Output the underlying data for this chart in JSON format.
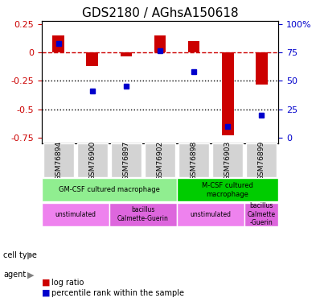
{
  "title": "GDS2180 / AGhsA150618",
  "samples": [
    "GSM76894",
    "GSM76900",
    "GSM76897",
    "GSM76902",
    "GSM76898",
    "GSM76903",
    "GSM76899"
  ],
  "log_ratio": [
    0.15,
    -0.12,
    -0.03,
    0.15,
    0.1,
    -0.73,
    -0.28
  ],
  "percentile_rank": [
    0.08,
    -0.34,
    -0.3,
    0.02,
    -0.17,
    -0.65,
    -0.55
  ],
  "ylim": [
    -0.8,
    0.28
  ],
  "yticks_left": [
    0.25,
    0,
    -0.25,
    -0.5,
    -0.75
  ],
  "yticks_right": [
    100,
    75,
    50,
    25,
    0
  ],
  "yticks_right_pos": [
    0.25,
    0,
    -0.25,
    -0.5,
    -0.75
  ],
  "hlines": [
    -0.25,
    -0.5
  ],
  "bar_color": "#cc0000",
  "dot_color": "#0000cc",
  "cell_type_row": [
    {
      "label": "GM-CSF cultured macrophage",
      "start": 0,
      "end": 4,
      "color": "#90ee90"
    },
    {
      "label": "M-CSF cultured\nmacrophage",
      "start": 4,
      "end": 7,
      "color": "#00cc00"
    }
  ],
  "agent_row": [
    {
      "label": "unstimulated",
      "start": 0,
      "end": 2,
      "color": "#ee82ee"
    },
    {
      "label": "bacillus\nCalmette-Guerin",
      "start": 2,
      "end": 4,
      "color": "#dd66dd"
    },
    {
      "label": "unstimulated",
      "start": 4,
      "end": 6,
      "color": "#ee82ee"
    },
    {
      "label": "bacillus\nCalmette\n-Guerin",
      "start": 6,
      "end": 7,
      "color": "#dd66dd"
    }
  ],
  "legend_items": [
    {
      "color": "#cc0000",
      "label": "log ratio"
    },
    {
      "color": "#0000cc",
      "label": "percentile rank within the sample"
    }
  ]
}
